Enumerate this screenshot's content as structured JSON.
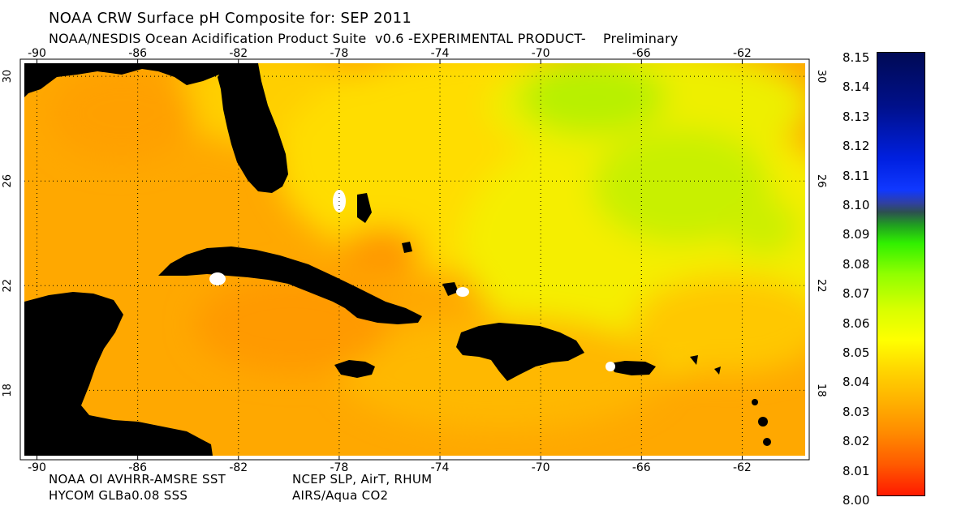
{
  "header": {
    "title": "NOAA CRW Surface pH Composite for: SEP 2011",
    "subtitle": "NOAA/NESDIS Ocean Acidification Product Suite  v0.6 -EXPERIMENTAL PRODUCT-    Preliminary"
  },
  "map": {
    "lon_ticks": [
      "-90",
      "-86",
      "-82",
      "-78",
      "-74",
      "-70",
      "-66",
      "-62"
    ],
    "lat_ticks": [
      "30",
      "26",
      "22",
      "18"
    ],
    "lon_range": [
      -90.5,
      -59.5
    ],
    "lat_range": [
      15.5,
      30.5
    ]
  },
  "sources": {
    "line1_left": "NOAA OI AVHRR-AMSRE SST",
    "line1_right": "NCEP SLP, AirT, RHUM",
    "line2_left": "HYCOM GLBa0.08 SSS",
    "line2_right": "AIRS/Aqua CO2"
  },
  "colorbar": {
    "labels": [
      "8.15",
      "8.14",
      "8.13",
      "8.12",
      "8.11",
      "8.10",
      "8.09",
      "8.08",
      "8.07",
      "8.06",
      "8.05",
      "8.04",
      "8.03",
      "8.02",
      "8.01",
      "8.00"
    ],
    "min": 8.0,
    "max": 8.15
  },
  "colors": {
    "land": "#000000",
    "ocean_orange": "#ffa800",
    "ocean_yellow": "#f5ee00",
    "ocean_green": "#b8f000",
    "grid": "#000000"
  }
}
